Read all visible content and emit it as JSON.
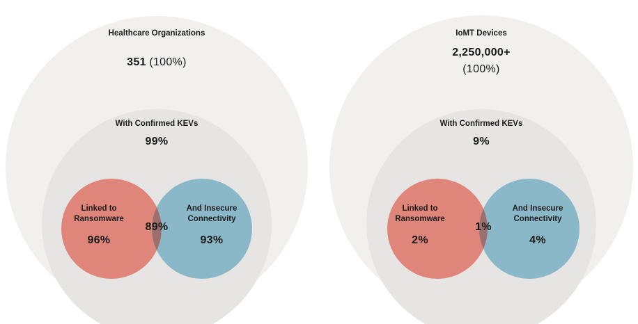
{
  "panels": [
    {
      "title": "Healthcare Organizations",
      "total_value": "351",
      "total_pct": "(100%)",
      "kev_label": "With Confirmed KEVs",
      "kev_pct": "99%",
      "ransomware_label_1": "Linked to",
      "ransomware_label_2": "Ransomware",
      "ransomware_pct": "96%",
      "overlap_pct": "89%",
      "connectivity_label_1": "And Insecure",
      "connectivity_label_2": "Connectivity",
      "connectivity_pct": "93%"
    },
    {
      "title": "IoMT Devices",
      "total_value": "2,250,000+",
      "total_pct": "(100%)",
      "kev_label": "With Confirmed KEVs",
      "kev_pct": "9%",
      "ransomware_label_1": "Linked to",
      "ransomware_label_2": "Ransomware",
      "ransomware_pct": "2%",
      "overlap_pct": "1%",
      "connectivity_label_1": "And Insecure",
      "connectivity_label_2": "Connectivity",
      "connectivity_pct": "4%"
    }
  ],
  "colors": {
    "outer_circle": "#f1f0ef",
    "kev_circle": "#e6e5e4",
    "ransomware": "#e0857a",
    "connectivity": "#8ab8c8",
    "overlap": "#9c6f6e"
  }
}
